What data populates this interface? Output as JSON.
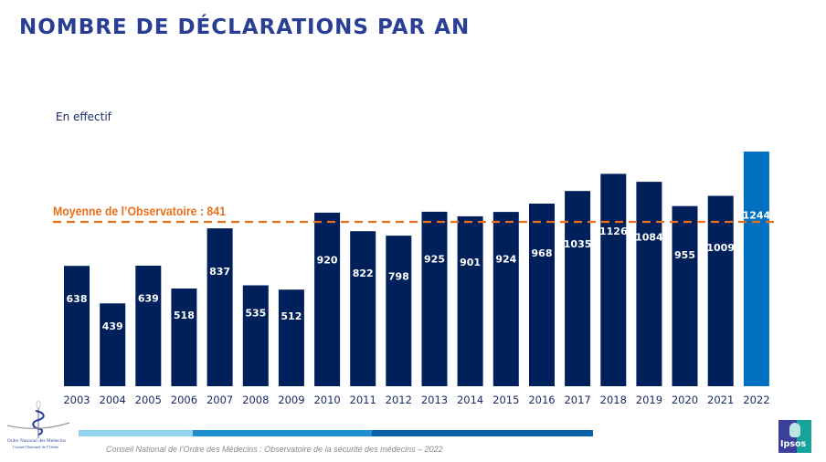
{
  "header": {
    "title": "NOMBRE DE DÉCLARATIONS PAR AN",
    "subtitle": "En effectif"
  },
  "colors": {
    "title": "#2a3f94",
    "bar": "#00205b",
    "bar_highlight": "#0070c0",
    "mean_line": "#e8701c",
    "footer_band": [
      "#8fd3ec",
      "#1e8fd0",
      "#0a62a8"
    ]
  },
  "chart_data": {
    "type": "bar",
    "title": "NOMBRE DE DÉCLARATIONS PAR AN",
    "subtitle": "En effectif",
    "xlabel": "",
    "ylabel": "",
    "categories": [
      "2003",
      "2004",
      "2005",
      "2006",
      "2007",
      "2008",
      "2009",
      "2010",
      "2011",
      "2012",
      "2013",
      "2014",
      "2015",
      "2016",
      "2017",
      "2018",
      "2019",
      "2020",
      "2021",
      "2022"
    ],
    "values": [
      638,
      439,
      639,
      518,
      837,
      535,
      512,
      920,
      822,
      798,
      925,
      901,
      924,
      968,
      1035,
      1126,
      1084,
      955,
      1009,
      1244
    ],
    "highlight": "2022",
    "ylim": [
      0,
      1244
    ],
    "grid": false,
    "legend": "none",
    "reference_line": {
      "label": "Moyenne de l’Observatoire : 841",
      "value": 841,
      "style": "dashed"
    }
  },
  "footer": {
    "source": "Conseil National de l’Ordre des Médecins : Observatoire de la sécurité des médecins – 2022",
    "org_logo_line1": "Ordre National des Médecins",
    "org_logo_line2": "Conseil National de l’Ordre",
    "ipsos_logo": "Ipsos"
  }
}
